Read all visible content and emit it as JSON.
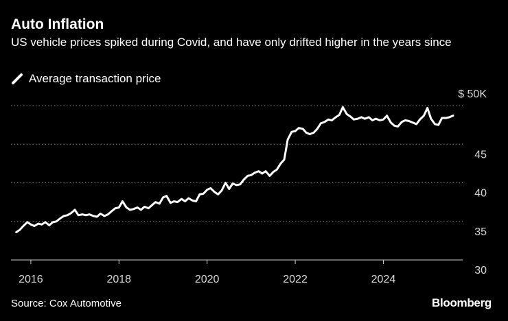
{
  "chart_data": {
    "type": "line",
    "title": "Auto Inflation",
    "subtitle": "US vehicle prices spiked during Covid, and have only drifted higher in the years since",
    "source": "Source: Cox Automotive",
    "brand": "Bloomberg",
    "legend_position": "top-left",
    "grid": true,
    "xlim": [
      2015.55,
      2025.8
    ],
    "ylim": [
      30,
      50
    ],
    "x_ticks": [
      2016,
      2018,
      2020,
      2022,
      2024
    ],
    "x_tick_labels": [
      "2016",
      "2018",
      "2020",
      "2022",
      "2024"
    ],
    "y_ticks": [
      30,
      35,
      40,
      45,
      50
    ],
    "y_tick_labels": [
      "30",
      "35",
      "40",
      "45",
      "$ 50K"
    ],
    "series": [
      {
        "name": "Average transaction price",
        "color": "#ffffff",
        "x": [
          2015.67,
          2015.75,
          2015.83,
          2015.92,
          2016.0,
          2016.08,
          2016.17,
          2016.25,
          2016.33,
          2016.42,
          2016.5,
          2016.58,
          2016.67,
          2016.75,
          2016.83,
          2016.92,
          2017.0,
          2017.08,
          2017.17,
          2017.25,
          2017.33,
          2017.42,
          2017.5,
          2017.58,
          2017.67,
          2017.75,
          2017.83,
          2017.92,
          2018.0,
          2018.08,
          2018.17,
          2018.25,
          2018.33,
          2018.42,
          2018.5,
          2018.58,
          2018.67,
          2018.75,
          2018.83,
          2018.92,
          2019.0,
          2019.08,
          2019.17,
          2019.25,
          2019.33,
          2019.42,
          2019.5,
          2019.58,
          2019.67,
          2019.75,
          2019.83,
          2019.92,
          2020.0,
          2020.08,
          2020.17,
          2020.25,
          2020.33,
          2020.42,
          2020.5,
          2020.58,
          2020.67,
          2020.75,
          2020.83,
          2020.92,
          2021.0,
          2021.08,
          2021.17,
          2021.25,
          2021.33,
          2021.42,
          2021.5,
          2021.58,
          2021.67,
          2021.75,
          2021.83,
          2021.92,
          2022.0,
          2022.08,
          2022.17,
          2022.25,
          2022.33,
          2022.42,
          2022.5,
          2022.58,
          2022.67,
          2022.75,
          2022.83,
          2022.92,
          2023.0,
          2023.08,
          2023.17,
          2023.25,
          2023.33,
          2023.42,
          2023.5,
          2023.58,
          2023.67,
          2023.75,
          2023.83,
          2023.92,
          2024.0,
          2024.08,
          2024.17,
          2024.25,
          2024.33,
          2024.42,
          2024.5,
          2024.58,
          2024.67,
          2024.75,
          2024.83,
          2024.92,
          2025.0,
          2025.08,
          2025.17,
          2025.25,
          2025.33,
          2025.42,
          2025.5,
          2025.58
        ],
        "values": [
          33.6,
          33.9,
          34.4,
          34.9,
          34.6,
          34.4,
          34.7,
          34.6,
          34.9,
          34.5,
          34.9,
          35.0,
          35.4,
          35.7,
          35.8,
          36.1,
          36.5,
          35.8,
          35.9,
          35.8,
          35.9,
          35.7,
          35.6,
          36.0,
          35.7,
          35.9,
          36.3,
          36.7,
          36.8,
          37.6,
          36.8,
          36.5,
          36.6,
          36.8,
          36.5,
          36.9,
          36.7,
          37.1,
          37.5,
          37.3,
          38.1,
          38.3,
          37.4,
          37.6,
          37.5,
          37.9,
          37.6,
          38.0,
          37.7,
          37.6,
          38.5,
          38.6,
          39.1,
          39.3,
          38.8,
          38.5,
          39.0,
          40.0,
          39.2,
          39.9,
          39.7,
          39.8,
          40.4,
          40.9,
          41.0,
          41.3,
          41.5,
          41.2,
          41.5,
          40.9,
          41.4,
          41.7,
          42.5,
          43.0,
          45.6,
          46.6,
          46.7,
          47.1,
          47.0,
          46.5,
          46.3,
          46.5,
          47.0,
          47.7,
          47.9,
          48.2,
          48.1,
          48.5,
          48.8,
          49.8,
          48.9,
          48.6,
          48.2,
          48.3,
          48.5,
          48.3,
          48.5,
          48.1,
          48.3,
          48.1,
          48.2,
          48.7,
          47.8,
          47.4,
          47.3,
          47.9,
          48.1,
          48.0,
          47.8,
          47.6,
          48.2,
          48.7,
          49.7,
          48.3,
          47.6,
          47.5,
          48.4,
          48.4,
          48.5,
          48.7
        ]
      }
    ]
  }
}
